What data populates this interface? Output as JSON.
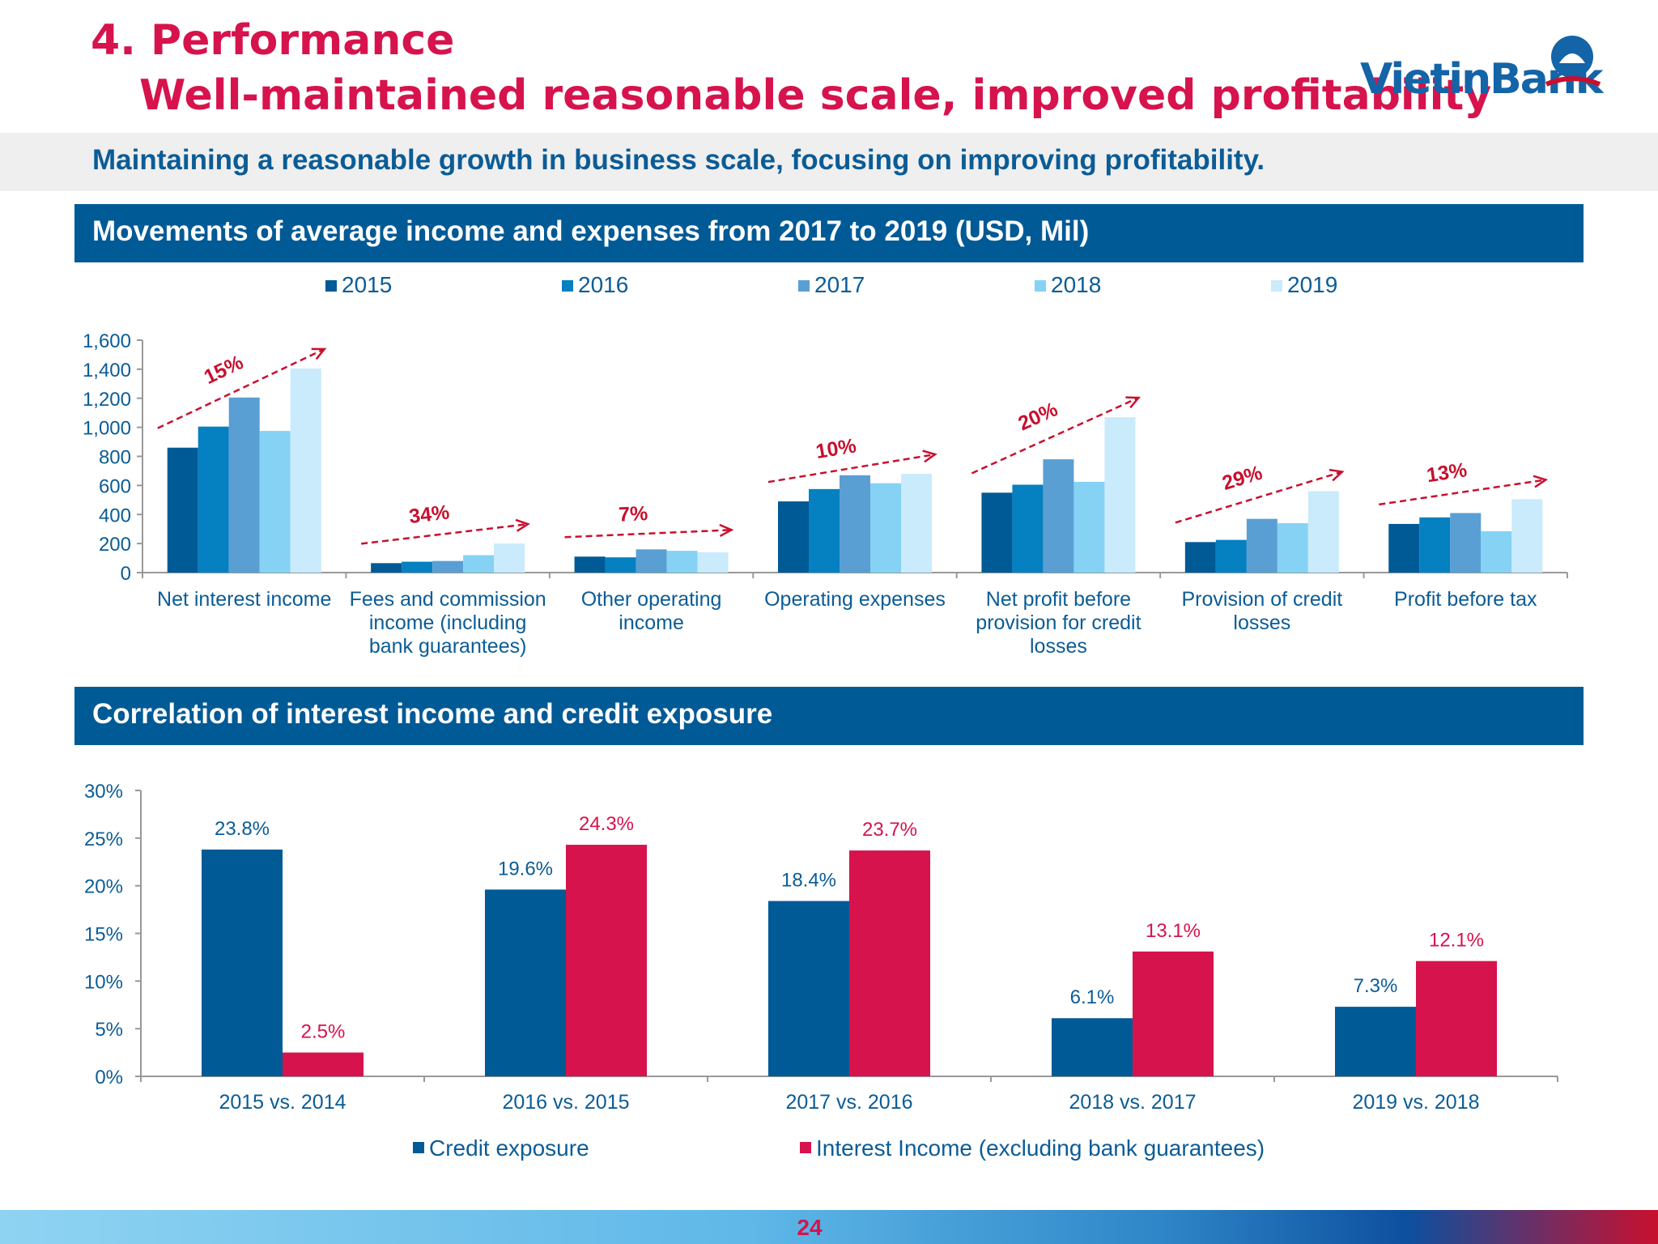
{
  "header": {
    "title_line1": "4. Performance",
    "title_line2": "Well-maintained reasonable scale, improved profitability",
    "logo_text": "VietinBank",
    "subtitle": "Maintaining a reasonable growth in business scale, focusing on improving profitability."
  },
  "sections": {
    "top_title": "Movements of average income and expenses from 2017 to 2019 (USD, Mil)",
    "bottom_title": "Correlation of interest income and credit exposure"
  },
  "colors": {
    "accent": "#d6134c",
    "brand_blue": "#005a96",
    "series_top": [
      "#005a96",
      "#0580c0",
      "#5a9fd4",
      "#86d2f4",
      "#c9ebfb"
    ],
    "series_bottom": [
      "#005a96",
      "#d6134c"
    ]
  },
  "chart_data": [
    {
      "type": "bar",
      "categories": [
        [
          "Net interest income"
        ],
        [
          "Fees and commission",
          "income (including",
          "bank guarantees)"
        ],
        [
          "Other operating",
          "income"
        ],
        [
          "Operating expenses"
        ],
        [
          "Net profit before",
          "provision for credit",
          "losses"
        ],
        [
          "Provision of credit",
          "losses"
        ],
        [
          "Profit before tax"
        ]
      ],
      "series": [
        {
          "name": "2015",
          "values": [
            860,
            65,
            110,
            490,
            550,
            210,
            335
          ]
        },
        {
          "name": "2016",
          "values": [
            1005,
            75,
            105,
            575,
            605,
            225,
            380
          ]
        },
        {
          "name": "2017",
          "values": [
            1205,
            80,
            160,
            670,
            780,
            370,
            410
          ]
        },
        {
          "name": "2018",
          "values": [
            975,
            120,
            150,
            615,
            625,
            340,
            285
          ]
        },
        {
          "name": "2019",
          "values": [
            1405,
            200,
            140,
            680,
            1070,
            560,
            505
          ]
        }
      ],
      "growth_labels": [
        "15%",
        "34%",
        "7%",
        "10%",
        "20%",
        "29%",
        "13%"
      ],
      "ylim": [
        0,
        1600
      ],
      "yticks": [
        "0",
        "200",
        "400",
        "600",
        "800",
        "1,000",
        "1,200",
        "1,400",
        "1,600"
      ],
      "legend_position": "top"
    },
    {
      "type": "bar",
      "categories": [
        "2015 vs. 2014",
        "2016 vs. 2015",
        "2017 vs. 2016",
        "2018 vs. 2017",
        "2019 vs. 2018"
      ],
      "series": [
        {
          "name": "Credit exposure",
          "values": [
            23.8,
            19.6,
            18.4,
            6.1,
            7.3
          ],
          "labels": [
            "23.8%",
            "19.6%",
            "18.4%",
            "6.1%",
            "7.3%"
          ]
        },
        {
          "name": "Interest Income (excluding bank guarantees)",
          "values": [
            2.5,
            24.3,
            23.7,
            13.1,
            12.1
          ],
          "labels": [
            "2.5%",
            "24.3%",
            "23.7%",
            "13.1%",
            "12.1%"
          ]
        }
      ],
      "ylim": [
        0,
        30
      ],
      "yticks": [
        "0%",
        "5%",
        "10%",
        "15%",
        "20%",
        "25%",
        "30%"
      ],
      "legend_position": "bottom"
    }
  ],
  "footer": {
    "page_number": "24"
  }
}
